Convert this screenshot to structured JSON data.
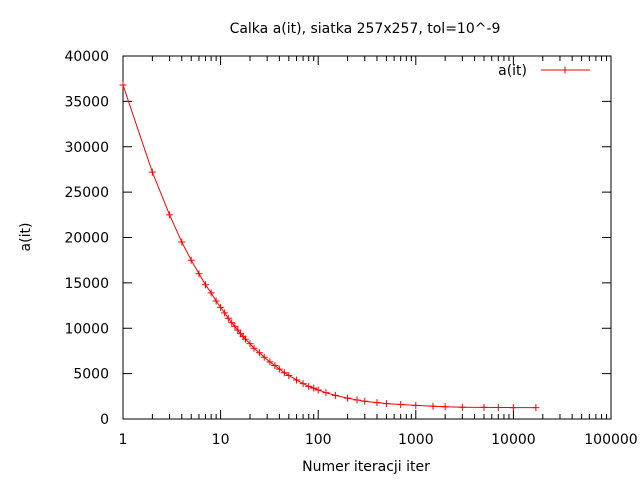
{
  "chart_data": {
    "type": "line",
    "title": "Calka a(it), siatka 257x257, tol=10^-9",
    "xlabel": "Numer iteracji iter",
    "ylabel": "a(it)",
    "x_scale": "log",
    "xlim": [
      1,
      100000
    ],
    "ylim": [
      0,
      40000
    ],
    "x_ticks": [
      1,
      10,
      100,
      1000,
      10000,
      100000
    ],
    "x_tick_labels": [
      "1",
      "10",
      "100",
      "1000",
      "10000",
      "100000"
    ],
    "y_ticks": [
      0,
      5000,
      10000,
      15000,
      20000,
      25000,
      30000,
      35000,
      40000
    ],
    "y_tick_labels": [
      "0",
      "5000",
      "10000",
      "15000",
      "20000",
      "25000",
      "30000",
      "35000",
      "40000"
    ],
    "grid": false,
    "legend": {
      "position": "top-right",
      "entries": [
        "a(it)"
      ]
    },
    "series": [
      {
        "name": "a(it)",
        "color": "#ff0000",
        "marker": "plus",
        "x": [
          1,
          2,
          3,
          4,
          5,
          6,
          7,
          8,
          9,
          10,
          11,
          12,
          13,
          14,
          15,
          16,
          17,
          18,
          20,
          22,
          25,
          28,
          32,
          36,
          40,
          45,
          50,
          60,
          70,
          80,
          90,
          100,
          120,
          150,
          200,
          250,
          300,
          400,
          500,
          700,
          1000,
          1500,
          2000,
          3000,
          5000,
          7000,
          10000,
          17000
        ],
        "y": [
          36800,
          27200,
          22500,
          19500,
          17500,
          16000,
          14800,
          13900,
          13000,
          12300,
          11700,
          11100,
          10600,
          10200,
          9800,
          9400,
          9100,
          8800,
          8300,
          7800,
          7300,
          6800,
          6300,
          5900,
          5500,
          5100,
          4800,
          4300,
          3900,
          3600,
          3400,
          3200,
          2900,
          2600,
          2300,
          2100,
          1950,
          1800,
          1700,
          1600,
          1500,
          1400,
          1350,
          1300,
          1280,
          1270,
          1260,
          1250
        ]
      }
    ]
  }
}
